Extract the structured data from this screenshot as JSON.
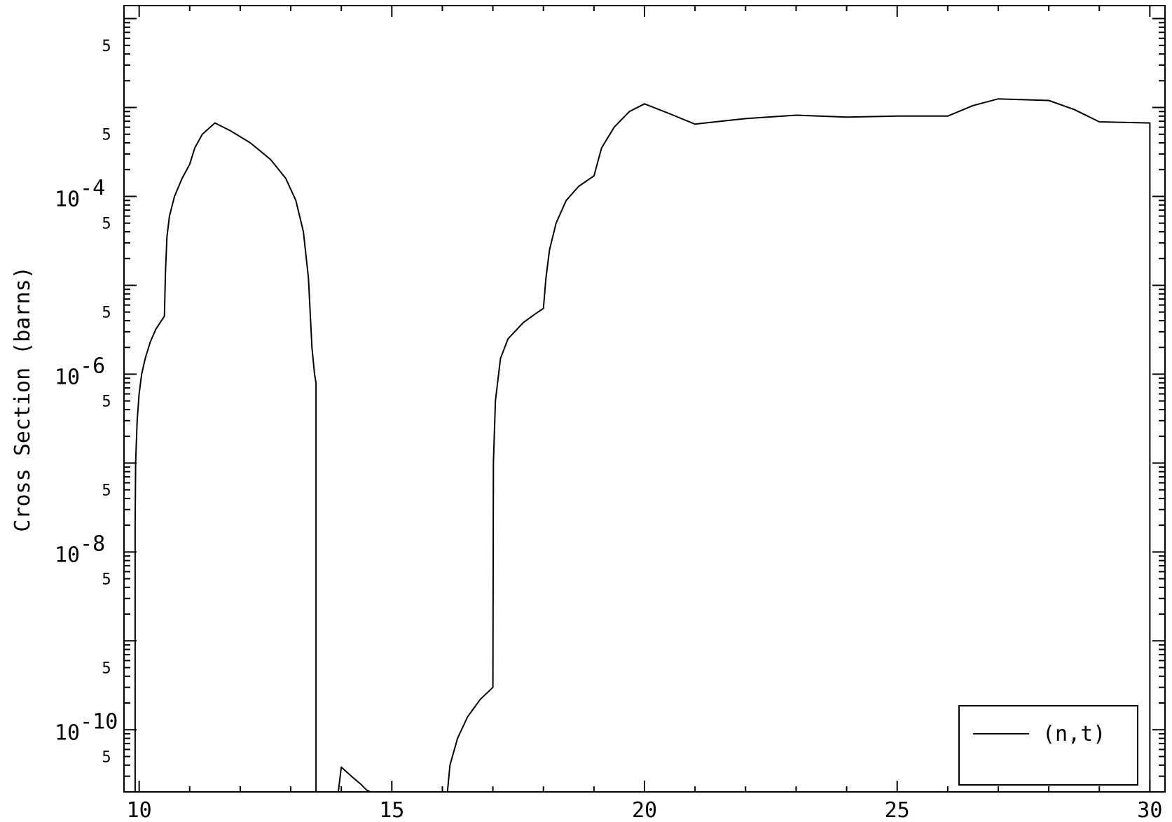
{
  "chart_data": {
    "type": "line",
    "title": "",
    "xlabel": "",
    "ylabel": "Cross Section (barns)",
    "xlim": [
      9.7,
      30.3
    ],
    "ylim": [
      2e-11,
      0.014
    ],
    "yscale": "log",
    "grid": false,
    "legend_position": "bottom-right",
    "x_ticks": [
      10,
      15,
      20,
      25,
      30
    ],
    "x_tick_labels": [
      "10",
      "15",
      "20",
      "25",
      "30"
    ],
    "y_major_ticks": [
      {
        "value": 0.0001,
        "base": "10",
        "exp": "-4"
      },
      {
        "value": 1e-06,
        "base": "10",
        "exp": "-6"
      },
      {
        "value": 1e-08,
        "base": "10",
        "exp": "-8"
      },
      {
        "value": 1e-10,
        "base": "10",
        "exp": "-10"
      }
    ],
    "y_minor_label": "5",
    "y_minor_label_values": [
      0.005,
      0.0005,
      5e-05,
      5e-06,
      5e-07,
      5e-08,
      5e-09,
      5e-10,
      5e-11
    ],
    "series": [
      {
        "name": "(n,t)",
        "color": "#000000",
        "segments": [
          [
            [
              9.92,
              2e-11
            ],
            [
              9.92,
              2e-08
            ],
            [
              9.93,
              1e-07
            ],
            [
              9.96,
              3e-07
            ],
            [
              10.0,
              6e-07
            ],
            [
              10.05,
              1e-06
            ],
            [
              10.12,
              1.5e-06
            ],
            [
              10.22,
              2.3e-06
            ],
            [
              10.33,
              3.2e-06
            ],
            [
              10.5,
              4.5e-06
            ],
            [
              10.52,
              1.4e-05
            ],
            [
              10.55,
              3.5e-05
            ],
            [
              10.6,
              6e-05
            ],
            [
              10.7,
              0.0001
            ],
            [
              10.85,
              0.00016
            ],
            [
              11.0,
              0.00023
            ],
            [
              11.1,
              0.00035
            ],
            [
              11.25,
              0.0005
            ],
            [
              11.5,
              0.00067
            ],
            [
              11.8,
              0.00055
            ],
            [
              12.2,
              0.0004
            ],
            [
              12.6,
              0.00026
            ],
            [
              12.9,
              0.00016
            ],
            [
              13.1,
              9e-05
            ],
            [
              13.25,
              4e-05
            ],
            [
              13.35,
              1.2e-05
            ],
            [
              13.42,
              2e-06
            ],
            [
              13.47,
              1e-06
            ],
            [
              13.5,
              8e-07
            ],
            [
              13.5,
              2e-11
            ]
          ],
          [
            [
              13.94,
              2e-11
            ],
            [
              14.0,
              3.8e-11
            ],
            [
              14.2,
              3e-11
            ],
            [
              14.4,
              2.4e-11
            ],
            [
              14.5,
              2.1e-11
            ],
            [
              14.58,
              2e-11
            ]
          ],
          [
            [
              16.1,
              2e-11
            ],
            [
              16.15,
              4e-11
            ],
            [
              16.3,
              8e-11
            ],
            [
              16.5,
              1.4e-10
            ],
            [
              16.75,
              2.2e-10
            ],
            [
              17.0,
              3e-10
            ],
            [
              17.01,
              1e-07
            ],
            [
              17.05,
              5e-07
            ],
            [
              17.15,
              1.5e-06
            ],
            [
              17.3,
              2.5e-06
            ],
            [
              17.6,
              3.8e-06
            ],
            [
              17.8,
              4.6e-06
            ],
            [
              18.0,
              5.5e-06
            ],
            [
              18.05,
              1.2e-05
            ],
            [
              18.12,
              2.5e-05
            ],
            [
              18.25,
              5e-05
            ],
            [
              18.45,
              9e-05
            ],
            [
              18.7,
              0.00013
            ],
            [
              19.0,
              0.00017
            ],
            [
              19.15,
              0.00035
            ],
            [
              19.4,
              0.0006
            ],
            [
              19.7,
              0.0009
            ],
            [
              20.0,
              0.0011
            ],
            [
              20.5,
              0.00085
            ],
            [
              21.0,
              0.00065
            ],
            [
              21.5,
              0.0007
            ],
            [
              22.0,
              0.00075
            ],
            [
              23.0,
              0.00082
            ],
            [
              24.0,
              0.00078
            ],
            [
              25.0,
              0.0008
            ],
            [
              26.0,
              0.0008
            ],
            [
              26.5,
              0.00105
            ],
            [
              27.0,
              0.00125
            ],
            [
              28.0,
              0.0012
            ],
            [
              28.5,
              0.00095
            ],
            [
              29.0,
              0.00069
            ],
            [
              30.0,
              0.00067
            ],
            [
              30.0,
              2e-11
            ]
          ]
        ]
      }
    ]
  }
}
